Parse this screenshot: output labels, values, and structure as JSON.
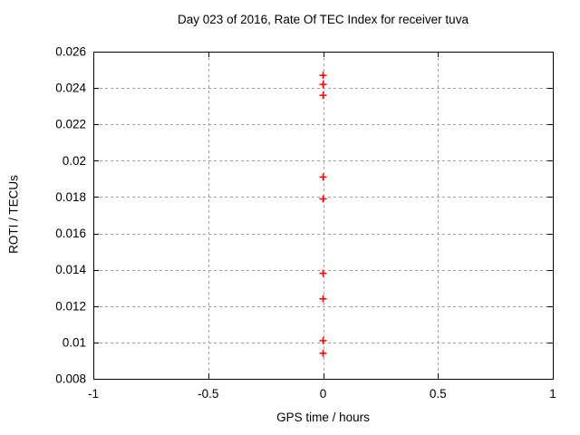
{
  "chart_data": {
    "type": "scatter",
    "title": "Day 023 of 2016, Rate Of TEC Index for receiver tuva",
    "xlabel": "GPS time / hours",
    "ylabel": "ROTI / TECUs",
    "xlim": [
      -1,
      1
    ],
    "ylim": [
      0.008,
      0.026
    ],
    "xticks": [
      {
        "v": -1,
        "label": "-1"
      },
      {
        "v": -0.5,
        "label": "-0.5"
      },
      {
        "v": 0,
        "label": "0"
      },
      {
        "v": 0.5,
        "label": "0.5"
      },
      {
        "v": 1,
        "label": "1"
      }
    ],
    "yticks": [
      {
        "v": 0.008,
        "label": "0.008"
      },
      {
        "v": 0.01,
        "label": "0.01"
      },
      {
        "v": 0.012,
        "label": "0.012"
      },
      {
        "v": 0.014,
        "label": "0.014"
      },
      {
        "v": 0.016,
        "label": "0.016"
      },
      {
        "v": 0.018,
        "label": "0.018"
      },
      {
        "v": 0.02,
        "label": "0.02"
      },
      {
        "v": 0.022,
        "label": "0.022"
      },
      {
        "v": 0.024,
        "label": "0.024"
      },
      {
        "v": 0.026,
        "label": "0.026"
      }
    ],
    "grid": true,
    "legend_position": "none",
    "series": [
      {
        "name": "ROTI",
        "marker": "plus",
        "color": "#ff0000",
        "points": [
          {
            "x": 0,
            "y": 0.0247
          },
          {
            "x": 0,
            "y": 0.0242
          },
          {
            "x": 0,
            "y": 0.0236
          },
          {
            "x": 0,
            "y": 0.0191
          },
          {
            "x": 0,
            "y": 0.0179
          },
          {
            "x": 0,
            "y": 0.0138
          },
          {
            "x": 0,
            "y": 0.0124
          },
          {
            "x": 0,
            "y": 0.0101
          },
          {
            "x": 0,
            "y": 0.0094
          }
        ]
      }
    ]
  },
  "colors": {
    "background": "#ffffff",
    "border": "#000000",
    "grid": "#a0a0a0",
    "text": "#000000",
    "marker": "#ff0000"
  }
}
